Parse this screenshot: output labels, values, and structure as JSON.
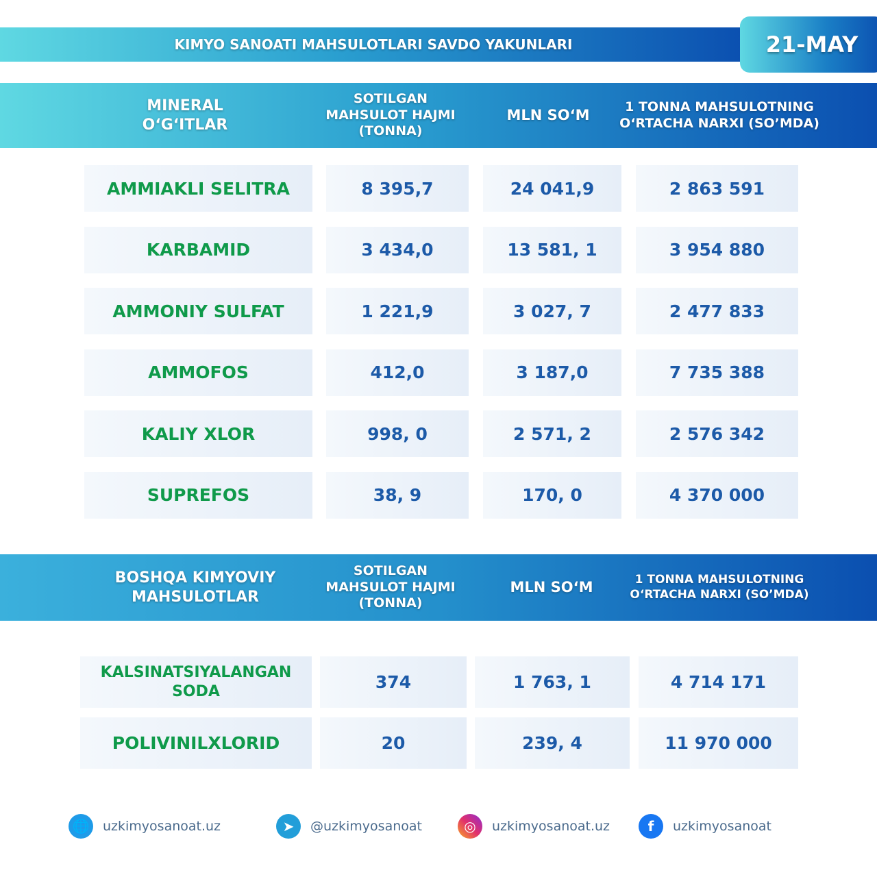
{
  "title": "KIMYO SANOATI MAHSULOTLARI SAVDO YAKUNLARI",
  "date": "21-MAY",
  "section1": {
    "headers": [
      "MINERAL O‘G‘ITLAR",
      "SOTILGAN MAHSULOT HAJMI (TONNA)",
      "MLN SO‘M",
      "1 TONNA MAHSULOTNING O‘RTACHA NARXI (SO’MDA)"
    ],
    "rows": [
      [
        "AMMIAKLI SELITRA",
        "8 395,7",
        "24 041,9",
        "2 863 591"
      ],
      [
        "KARBAMID",
        "3 434,0",
        "13 581, 1",
        "3 954 880"
      ],
      [
        "AMMONIY SULFAT",
        "1 221,9",
        "3 027, 7",
        "2 477 833"
      ],
      [
        "AMMOFOS",
        "412,0",
        "3 187,0",
        "7 735 388"
      ],
      [
        "KALIY XLOR",
        "998, 0",
        "2 571, 2",
        "2 576 342"
      ],
      [
        "SUPREFOS",
        "38, 9",
        "170, 0",
        "4 370 000"
      ]
    ]
  },
  "section2": {
    "headers": [
      "BOSHQA KIMYOVIY MAHSULOTLAR",
      "SOTILGAN MAHSULOT HAJMI (TONNA)",
      "MLN SO‘M",
      "1 TONNA MAHSULOTNING O‘RTACHA NARXI (SO’MDA)"
    ],
    "rows": [
      [
        "KALSINATSIYALANGAN SODA",
        "374",
        "1 763, 1",
        "4 714 171"
      ],
      [
        "POLIVINILXLORID",
        "20",
        "239, 4",
        "11 970 000"
      ]
    ]
  },
  "footer": [
    {
      "icon": "globe-icon",
      "text": "uzkimyosanoat.uz"
    },
    {
      "icon": "telegram-icon",
      "text": "@uzkimyosanoat"
    },
    {
      "icon": "instagram-icon",
      "text": "uzkimyosanoat.uz"
    },
    {
      "icon": "facebook-icon",
      "text": "uzkimyosanoat"
    }
  ]
}
